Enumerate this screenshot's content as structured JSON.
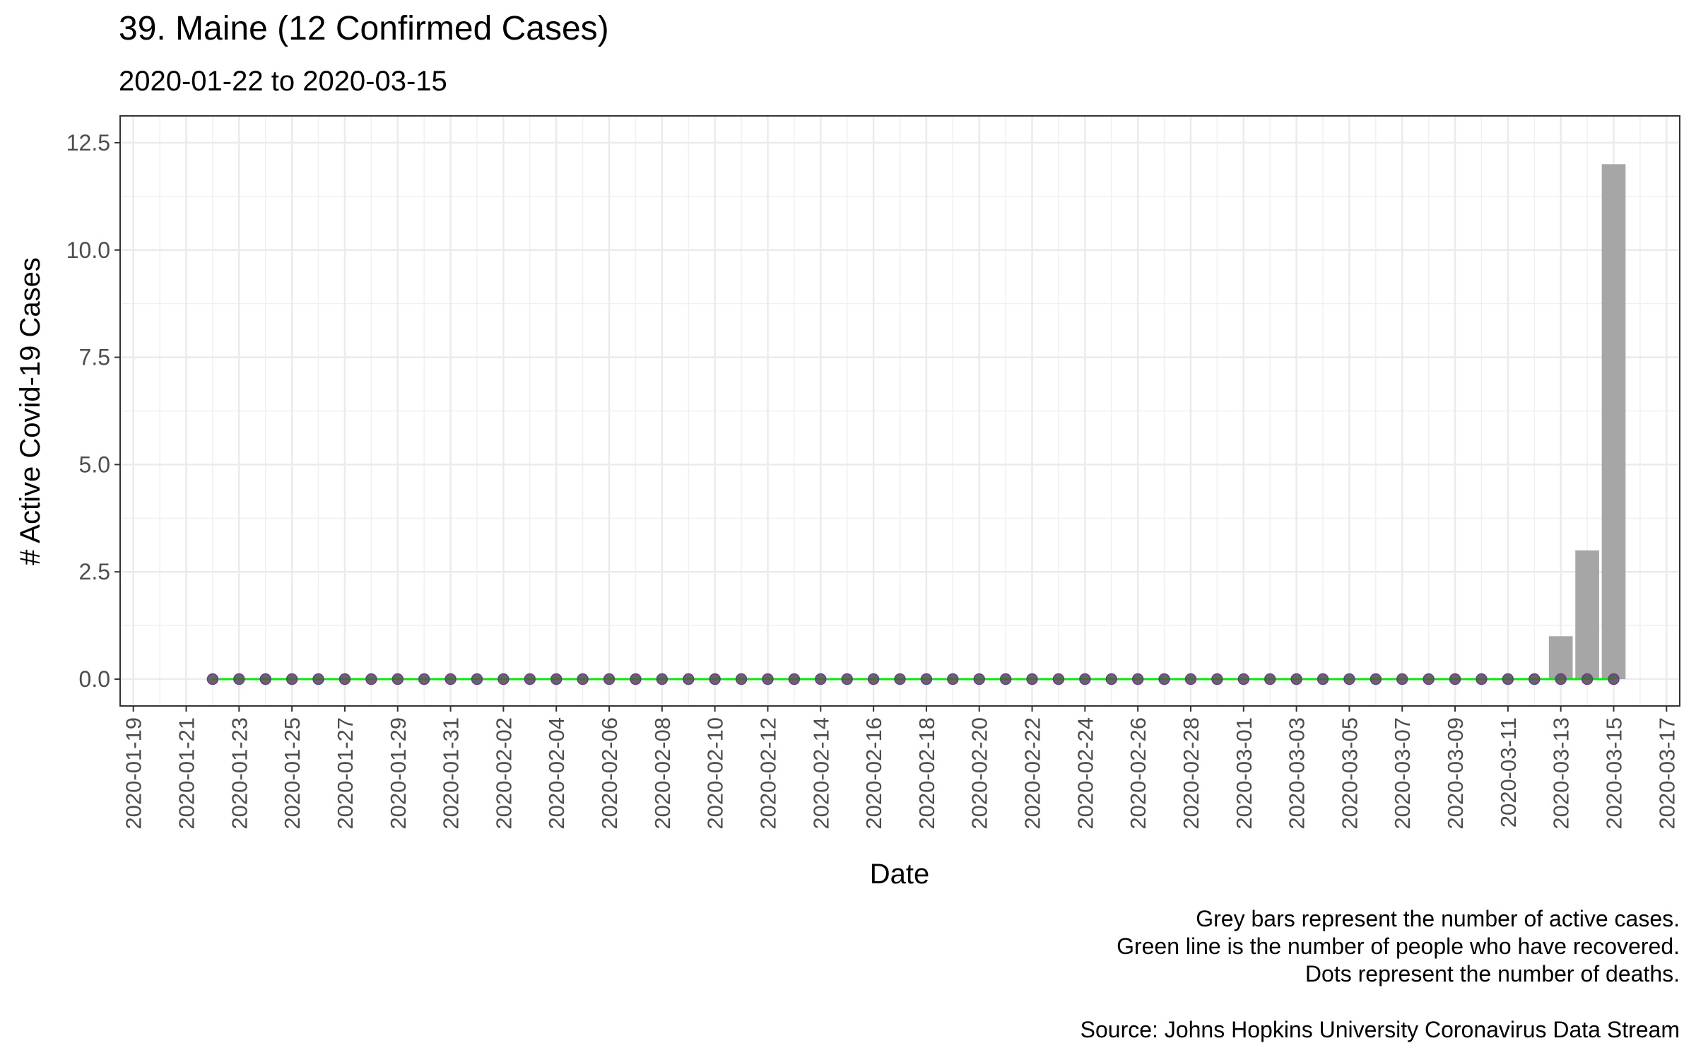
{
  "chart_data": {
    "type": "bar",
    "title": "39. Maine (12 Confirmed Cases)",
    "subtitle": "2020-01-22 to 2020-03-15",
    "xlabel": "Date",
    "ylabel": "# Active Covid-19 Cases",
    "xlim": [
      "2020-01-19",
      "2020-03-17"
    ],
    "ylim": [
      0,
      12.5
    ],
    "y_ticks": [
      "0.0",
      "2.5",
      "5.0",
      "7.5",
      "10.0",
      "12.5"
    ],
    "x_ticks": [
      "2020-01-19",
      "2020-01-21",
      "2020-01-23",
      "2020-01-25",
      "2020-01-27",
      "2020-01-29",
      "2020-01-31",
      "2020-02-02",
      "2020-02-04",
      "2020-02-06",
      "2020-02-08",
      "2020-02-10",
      "2020-02-12",
      "2020-02-14",
      "2020-02-16",
      "2020-02-18",
      "2020-02-20",
      "2020-02-22",
      "2020-02-24",
      "2020-02-26",
      "2020-02-28",
      "2020-03-01",
      "2020-03-03",
      "2020-03-05",
      "2020-03-07",
      "2020-03-09",
      "2020-03-11",
      "2020-03-13",
      "2020-03-15",
      "2020-03-17"
    ],
    "grid": true,
    "start_date": "2020-01-22",
    "end_date": "2020-03-15",
    "series": [
      {
        "kind": "bar",
        "color": "#a6a6a6",
        "values": [
          0,
          0,
          0,
          0,
          0,
          0,
          0,
          0,
          0,
          0,
          0,
          0,
          0,
          0,
          0,
          0,
          0,
          0,
          0,
          0,
          0,
          0,
          0,
          0,
          0,
          0,
          0,
          0,
          0,
          0,
          0,
          0,
          0,
          0,
          0,
          0,
          0,
          0,
          0,
          0,
          0,
          0,
          0,
          0,
          0,
          0,
          0,
          0,
          0,
          0,
          0,
          1,
          3,
          12
        ]
      },
      {
        "kind": "line",
        "color": "#00ee00",
        "values": [
          0,
          0,
          0,
          0,
          0,
          0,
          0,
          0,
          0,
          0,
          0,
          0,
          0,
          0,
          0,
          0,
          0,
          0,
          0,
          0,
          0,
          0,
          0,
          0,
          0,
          0,
          0,
          0,
          0,
          0,
          0,
          0,
          0,
          0,
          0,
          0,
          0,
          0,
          0,
          0,
          0,
          0,
          0,
          0,
          0,
          0,
          0,
          0,
          0,
          0,
          0,
          0,
          0,
          0
        ]
      },
      {
        "kind": "points",
        "color": "#555555",
        "values": [
          0,
          0,
          0,
          0,
          0,
          0,
          0,
          0,
          0,
          0,
          0,
          0,
          0,
          0,
          0,
          0,
          0,
          0,
          0,
          0,
          0,
          0,
          0,
          0,
          0,
          0,
          0,
          0,
          0,
          0,
          0,
          0,
          0,
          0,
          0,
          0,
          0,
          0,
          0,
          0,
          0,
          0,
          0,
          0,
          0,
          0,
          0,
          0,
          0,
          0,
          0,
          0,
          0,
          0
        ]
      }
    ],
    "caption": [
      "Grey bars represent the number of active cases.",
      "Green line is the number of people who have recovered.",
      "Dots represent the number of deaths.",
      "",
      "Source: Johns Hopkins University Coronavirus Data Stream"
    ]
  }
}
